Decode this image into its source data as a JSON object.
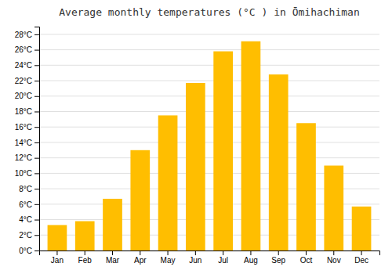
{
  "chart_data": {
    "type": "bar",
    "title": "Average monthly temperatures (°C ) in Ōmihachiman",
    "categories": [
      "Jan",
      "Feb",
      "Mar",
      "Apr",
      "May",
      "Jun",
      "Jul",
      "Aug",
      "Sep",
      "Oct",
      "Nov",
      "Dec"
    ],
    "values": [
      3.3,
      3.8,
      6.7,
      13.0,
      17.5,
      21.7,
      25.8,
      27.1,
      22.8,
      16.5,
      11.0,
      5.7
    ],
    "color": "#FFBE00",
    "ylim": [
      0,
      29
    ],
    "yticks": [
      {
        "value": 0,
        "label": "0°C"
      },
      {
        "value": 2,
        "label": "2°C"
      },
      {
        "value": 4,
        "label": "4°C"
      },
      {
        "value": 6,
        "label": "6°C"
      },
      {
        "value": 8,
        "label": "8°C"
      },
      {
        "value": 10,
        "label": "10°C"
      },
      {
        "value": 12,
        "label": "12°C"
      },
      {
        "value": 14,
        "label": "14°C"
      },
      {
        "value": 16,
        "label": "16°C"
      },
      {
        "value": 18,
        "label": "18°C"
      },
      {
        "value": 20,
        "label": "20°C"
      },
      {
        "value": 22,
        "label": "22°C"
      },
      {
        "value": 24,
        "label": "24°C"
      },
      {
        "value": 26,
        "label": "26°C"
      },
      {
        "value": 28,
        "label": "28°C"
      }
    ],
    "grid": true
  }
}
